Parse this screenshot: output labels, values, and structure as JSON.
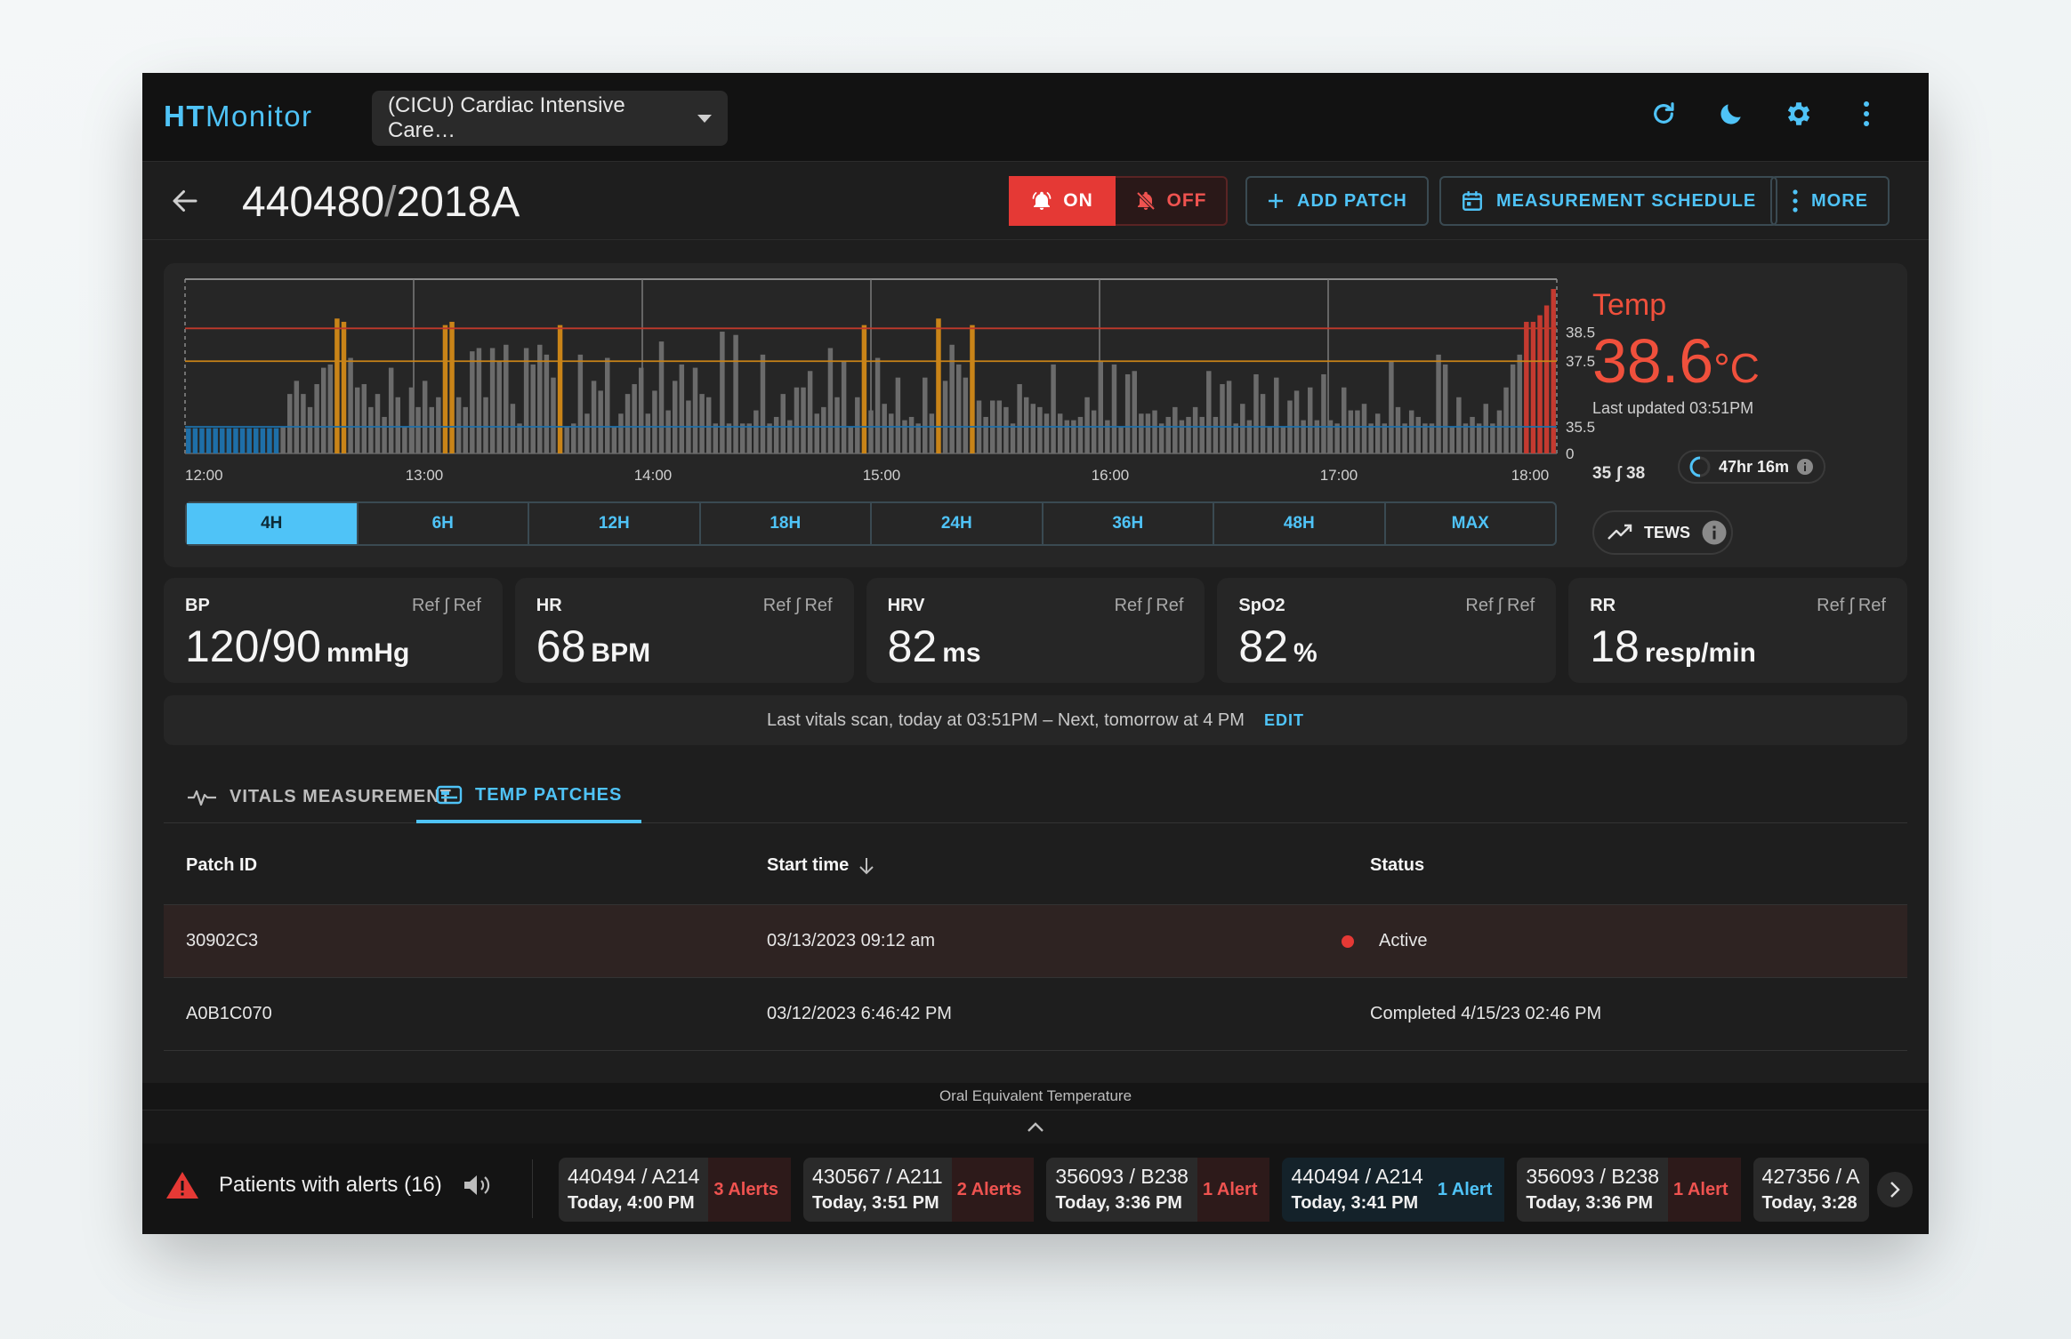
{
  "app": {
    "logo_bold": "HT",
    "logo_rest": "Monitor",
    "unit_selector": "(CICU) Cardiac Intensive Care…"
  },
  "header": {
    "patient_id": "440480",
    "patient_bed": "2018A",
    "alarm_on": "ON",
    "alarm_off": "OFF",
    "add_patch": "ADD PATCH",
    "measurement_schedule": "MEASUREMENT SCHEDULE",
    "more": "MORE"
  },
  "chart_data": {
    "type": "bar",
    "x_ticks": [
      "12:00",
      "13:00",
      "14:00",
      "15:00",
      "16:00",
      "17:00",
      "18:00"
    ],
    "y_ticks": [
      "38.5",
      "37.5",
      "35.5",
      "0"
    ],
    "ylim": [
      0,
      40
    ],
    "reference_lines": [
      38.5,
      37.5,
      35.5
    ],
    "values": [
      33.6,
      33.6,
      33.6,
      33.6,
      33.6,
      33.6,
      33.6,
      33.6,
      33.6,
      33.6,
      33.6,
      33.6,
      33.6,
      33.6,
      35.5,
      36.5,
      36.9,
      36.5,
      36.1,
      36.8,
      37.3,
      37.4,
      38.8,
      38.7,
      37.6,
      36.7,
      36.8,
      36.1,
      36.5,
      35.8,
      37.3,
      36.4,
      35.5,
      36.7,
      36.1,
      36.9,
      36.1,
      36.4,
      38.6,
      38.7,
      36.4,
      36.1,
      37.8,
      37.9,
      36.4,
      37.9,
      37.5,
      38.0,
      36.2,
      35.6,
      37.9,
      37.4,
      38.0,
      37.7,
      37.0,
      38.6,
      35.5,
      35.6,
      37.7,
      35.9,
      36.9,
      36.6,
      37.6,
      35.5,
      35.9,
      36.5,
      36.8,
      37.3,
      35.9,
      36.6,
      38.1,
      36.0,
      36.9,
      37.4,
      36.3,
      37.3,
      36.5,
      36.4,
      35.6,
      38.4,
      35.6,
      38.3,
      35.6,
      35.6,
      36.0,
      37.7,
      35.6,
      35.8,
      36.5,
      35.7,
      36.7,
      36.7,
      37.2,
      35.9,
      36.1,
      37.9,
      36.4,
      37.5,
      35.5,
      36.4,
      38.6,
      36.0,
      37.6,
      36.2,
      35.9,
      37.0,
      35.7,
      35.8,
      35.6,
      37.0,
      35.9,
      38.8,
      36.9,
      38.0,
      37.4,
      37.0,
      38.6,
      36.3,
      35.8,
      36.3,
      36.3,
      36.1,
      35.6,
      36.8,
      36.4,
      36.2,
      36.1,
      35.9,
      37.4,
      35.9,
      35.7,
      35.7,
      35.8,
      36.4,
      36.0,
      37.5,
      35.7,
      37.4,
      35.5,
      37.1,
      37.2,
      35.9,
      35.9,
      36.0,
      35.6,
      35.8,
      36.1,
      35.7,
      35.8,
      36.1,
      35.8,
      37.2,
      35.8,
      36.8,
      36.9,
      35.6,
      36.2,
      35.7,
      37.1,
      36.5,
      35.5,
      37.0,
      35.5,
      36.3,
      36.6,
      35.7,
      36.7,
      35.7,
      37.1,
      35.7,
      35.6,
      36.7,
      36.0,
      36.0,
      36.2,
      35.6,
      35.9,
      35.6,
      37.5,
      36.1,
      35.6,
      36.0,
      35.8,
      35.6,
      35.6,
      37.7,
      37.4,
      35.5,
      36.4,
      35.6,
      35.8,
      35.6,
      36.2,
      35.6,
      36.0,
      36.7,
      37.4,
      37.7,
      38.7,
      38.7,
      38.9,
      39.2,
      39.7
    ],
    "series_colors": {
      "low": "#1e6fa8",
      "normal": "#6b6b6b",
      "elevated": "#c98418",
      "high": "#c43a30"
    }
  },
  "ranges": [
    "4H",
    "6H",
    "12H",
    "18H",
    "24H",
    "36H",
    "48H",
    "MAX"
  ],
  "active_range": "4H",
  "temp": {
    "label": "Temp",
    "value": "38.6",
    "unit": "°C",
    "last_updated": "Last updated 03:51PM",
    "range_low": "35",
    "range_high": "38",
    "timer": "47hr 16m",
    "tews": "TEWS"
  },
  "vitals": [
    {
      "name": "BP",
      "ref": "Ref ʃ Ref",
      "value": "120/90",
      "unit": "mmHg"
    },
    {
      "name": "HR",
      "ref": "Ref ʃ Ref",
      "value": "68",
      "unit": "BPM"
    },
    {
      "name": "HRV",
      "ref": "Ref ʃ Ref",
      "value": "82",
      "unit": "ms"
    },
    {
      "name": "SpO2",
      "ref": "Ref ʃ Ref",
      "value": "82",
      "unit": "%"
    },
    {
      "name": "RR",
      "ref": "Ref ʃ Ref",
      "value": "18",
      "unit": "resp/min"
    }
  ],
  "scan": {
    "text": "Last vitals scan, today at 03:51PM – Next, tomorrow at 4 PM",
    "edit": "EDIT"
  },
  "tabs": {
    "vitals": "VITALS MEASUREMENT",
    "temp_patches": "TEMP PATCHES"
  },
  "table": {
    "headers": [
      "Patch ID",
      "Start time",
      "Status"
    ],
    "rows": [
      {
        "patch_id": "30902C3",
        "start": "03/13/2023 09:12 am",
        "status": "Active"
      },
      {
        "patch_id": "A0B1C070",
        "start": "03/12/2023 6:46:42 PM",
        "status": "Completed 4/15/23 02:46 PM"
      }
    ]
  },
  "footer": {
    "caption": "Oral Equivalent Temperature",
    "alerts_title": "Patients with alerts (16)",
    "alerts": [
      {
        "patient": "440494 / A214",
        "time": "Today, 4:00 PM",
        "count": "3 Alerts",
        "style": "red"
      },
      {
        "patient": "430567 / A211",
        "time": "Today, 3:51 PM",
        "count": "2 Alerts",
        "style": "red"
      },
      {
        "patient": "356093 / B238",
        "time": "Today, 3:36 PM",
        "count": "1 Alert",
        "style": "red"
      },
      {
        "patient": "440494 / A214",
        "time": "Today, 3:41 PM",
        "count": "1 Alert",
        "style": "blue"
      },
      {
        "patient": "356093 / B238",
        "time": "Today, 3:36 PM",
        "count": "1 Alert",
        "style": "red"
      },
      {
        "patient": "427356 / A",
        "time": "Today, 3:28",
        "count": "",
        "style": "red"
      }
    ]
  }
}
